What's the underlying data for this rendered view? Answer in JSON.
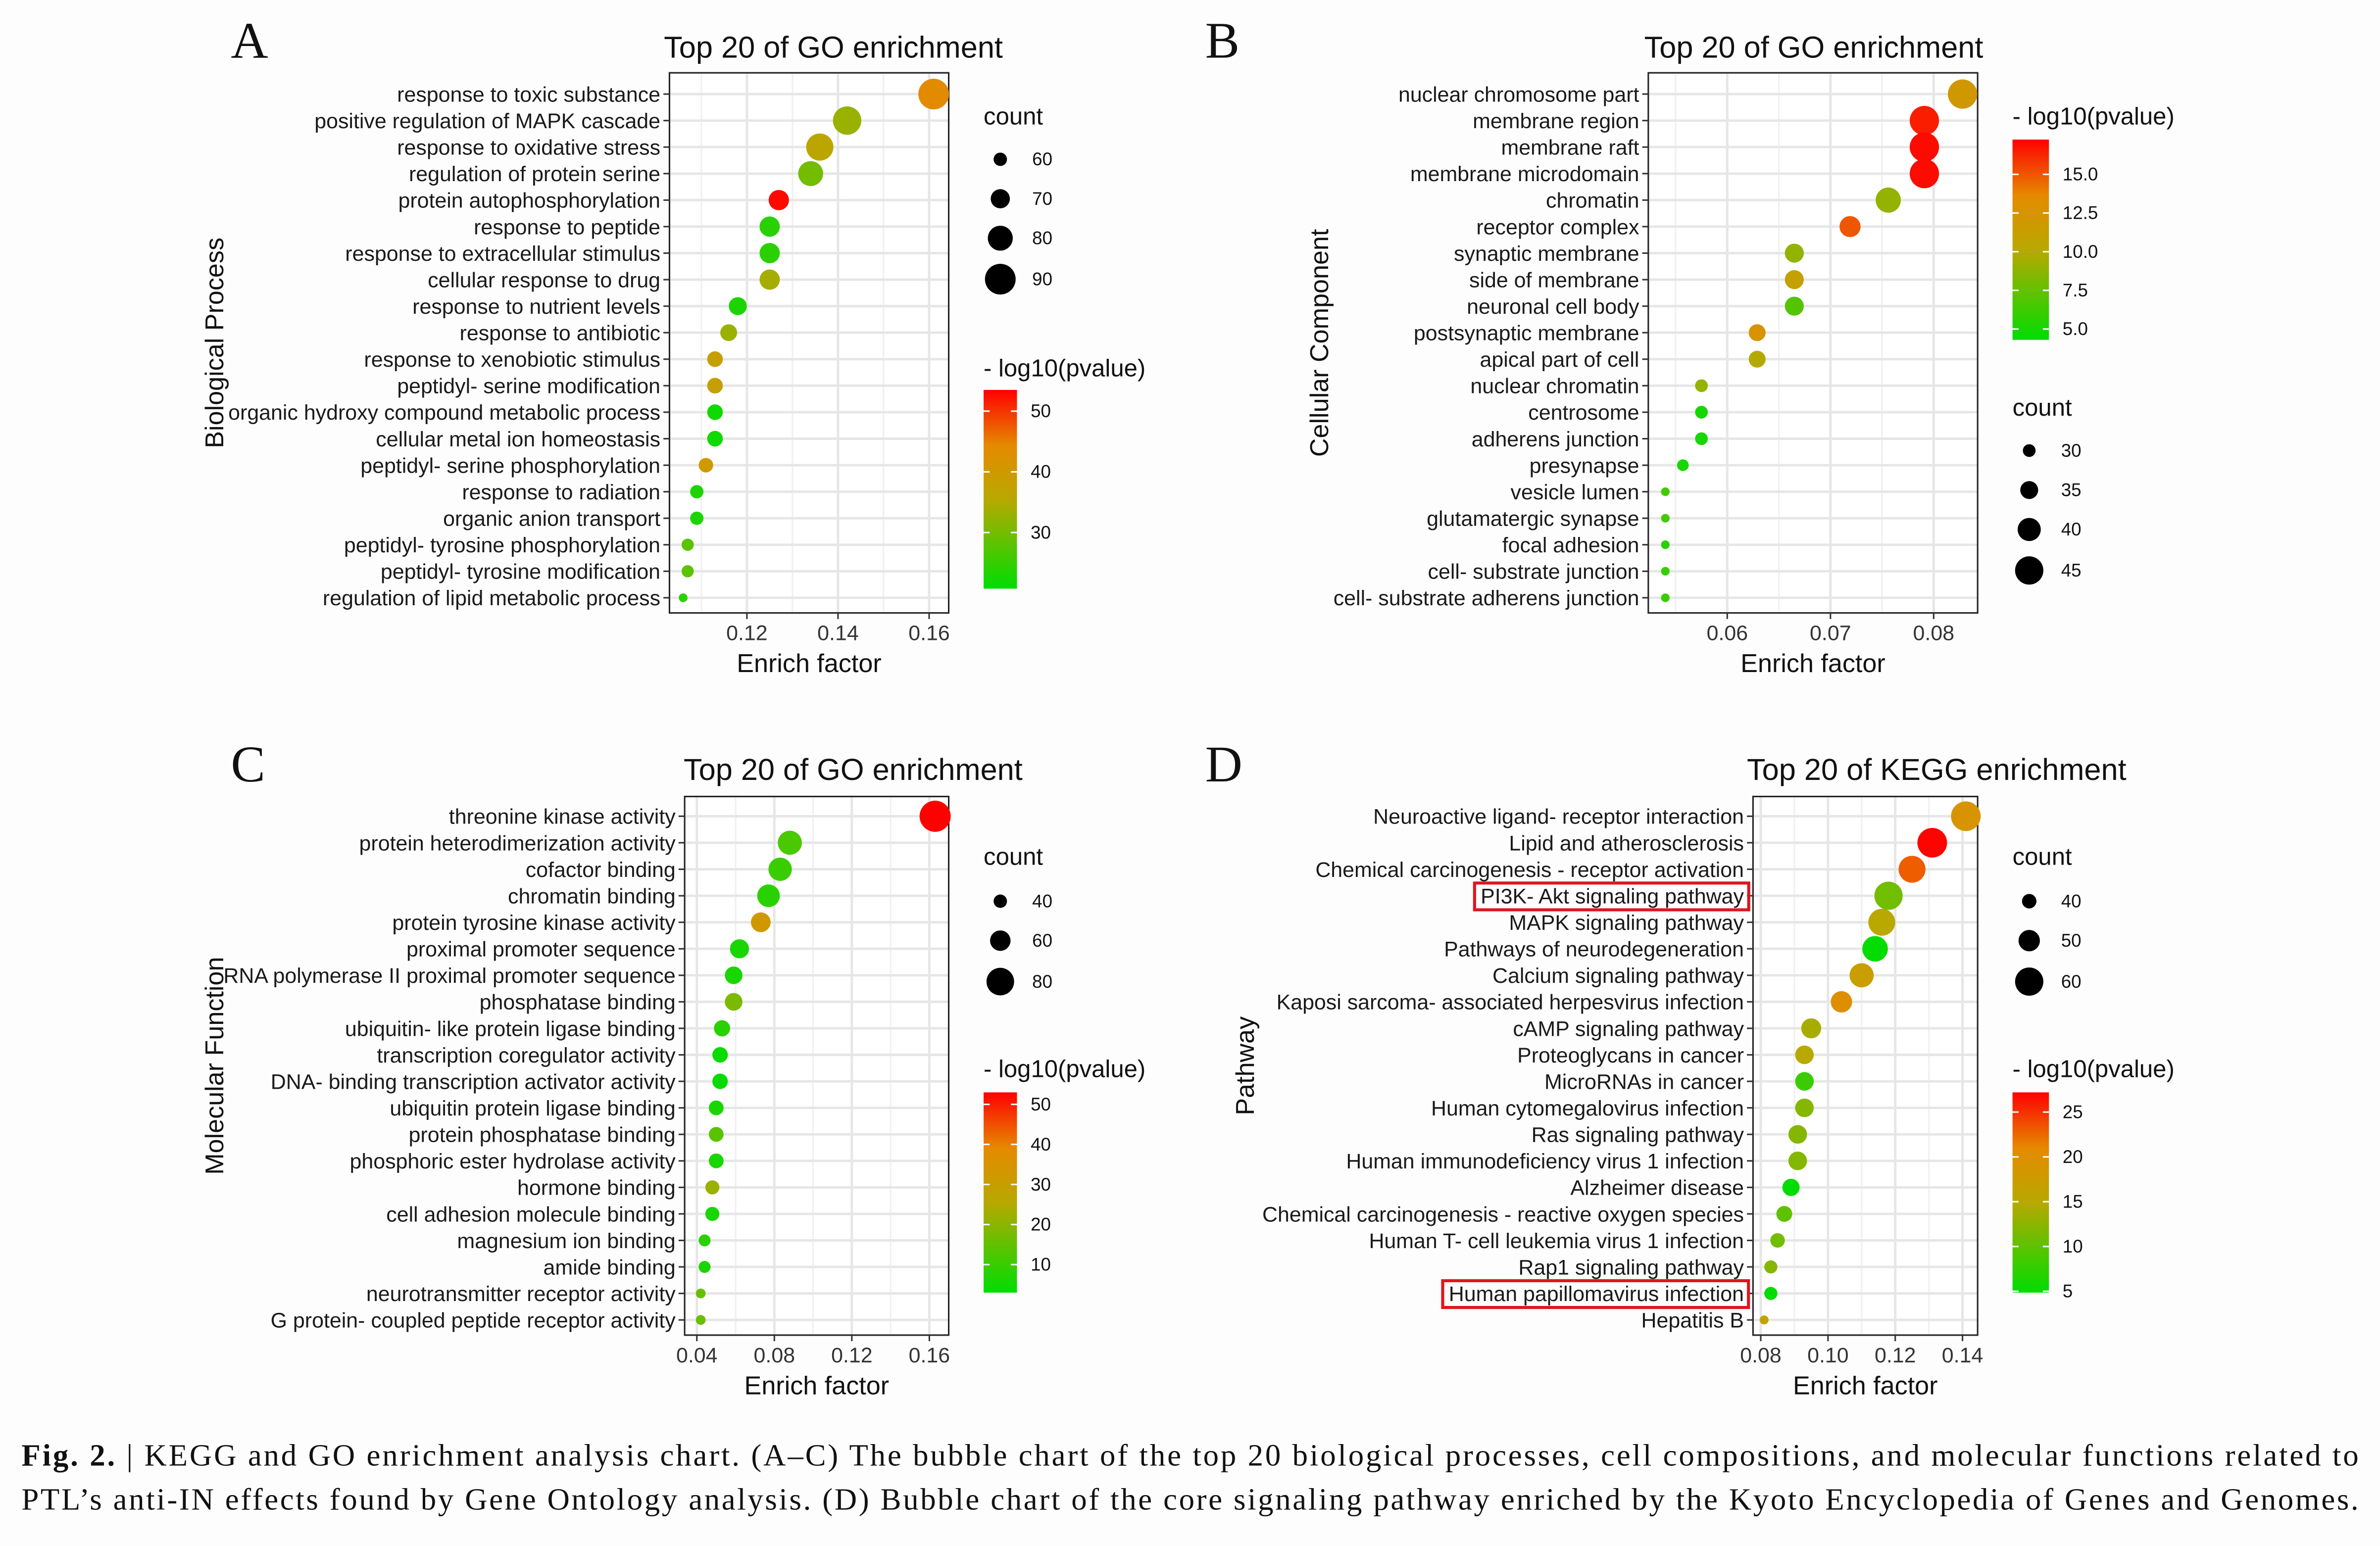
{
  "colors": {
    "low": "#00dd00",
    "mid": "#b8a800",
    "high_mid": "#e58a00",
    "high": "#ff0000",
    "highlight_box": "#e0141e"
  },
  "chart_data": [
    {
      "panel": "A",
      "type": "scatter",
      "title": "Top 20 of GO enrichment",
      "xlabel": "Enrich factor",
      "ylabel": "Biological Process",
      "xticks": [
        "0.12",
        "0.14",
        "0.16"
      ],
      "xlim": [
        0.103,
        0.1643
      ],
      "grid": true,
      "categories": [
        "response to toxic substance",
        "positive regulation of MAPK cascade",
        "response to oxidative stress",
        "regulation of protein serine",
        "protein autophosphorylation",
        "response to peptide",
        "response to extracellular stimulus",
        "cellular response to drug",
        "response to nutrient levels",
        "response to antibiotic",
        "response to xenobiotic stimulus",
        "peptidyl- serine modification",
        "organic hydroxy compound metabolic process",
        "cellular metal ion homeostasis",
        "peptidyl- serine phosphorylation",
        "response to radiation",
        "organic anion transport",
        "peptidyl- tyrosine phosphorylation",
        "peptidyl- tyrosine modification",
        "regulation of lipid metabolic process"
      ],
      "enrich_factor": [
        0.161,
        0.142,
        0.136,
        0.134,
        0.127,
        0.125,
        0.125,
        0.125,
        0.118,
        0.116,
        0.113,
        0.113,
        0.113,
        0.113,
        0.111,
        0.109,
        0.109,
        0.107,
        0.107,
        0.106
      ],
      "count": [
        90,
        86,
        84,
        80,
        72,
        72,
        72,
        72,
        68,
        66,
        64,
        64,
        64,
        64,
        62,
        60,
        60,
        58,
        58,
        52
      ],
      "neg_log10_pvalue": [
        44,
        33,
        36,
        30,
        53,
        24,
        24,
        34,
        23,
        33,
        38,
        38,
        22,
        22,
        40,
        23,
        23,
        28,
        28,
        24
      ],
      "size_legend": {
        "title": "count",
        "values": [
          "60",
          "70",
          "80",
          "90"
        ],
        "domain": [
          50,
          92
        ]
      },
      "color_legend": {
        "title": "- log10(pvalue)",
        "ticks": [
          "50",
          "40",
          "30"
        ],
        "range": [
          20.75,
          53.5
        ]
      }
    },
    {
      "panel": "B",
      "type": "scatter",
      "title": "Top 20 of GO enrichment",
      "xlabel": "Enrich factor",
      "ylabel": "Cellular Component",
      "xticks": [
        "0.06",
        "0.07",
        "0.08"
      ],
      "xlim": [
        0.05235,
        0.08426
      ],
      "grid": true,
      "categories": [
        "nuclear chromosome part",
        "membrane region",
        "membrane raft",
        "membrane microdomain",
        "chromatin",
        "receptor complex",
        "synaptic membrane",
        "side of membrane",
        "neuronal cell body",
        "postsynaptic membrane",
        "apical part of cell",
        "nuclear chromatin",
        "centrosome",
        "adherens junction",
        "presynapse",
        "vesicle lumen",
        "glutamatergic synapse",
        "focal adhesion",
        "cell- substrate junction",
        "cell- substrate adherens junction"
      ],
      "enrich_factor": [
        0.0828,
        0.0791,
        0.0791,
        0.0791,
        0.0756,
        0.0719,
        0.0665,
        0.0665,
        0.0665,
        0.0629,
        0.0629,
        0.0575,
        0.0575,
        0.0575,
        0.0557,
        0.054,
        0.054,
        0.054,
        0.054,
        0.054
      ],
      "count": [
        46,
        46,
        46,
        46,
        42,
        38,
        36,
        36,
        36,
        34,
        34,
        30,
        30,
        30,
        29,
        26,
        26,
        26,
        26,
        26
      ],
      "neg_log10_pvalue": [
        12,
        16.5,
        17,
        17,
        9,
        15,
        9,
        11,
        7,
        12.5,
        10,
        9,
        5,
        5,
        5,
        6.5,
        6.5,
        5.5,
        6,
        6
      ],
      "color_legend": {
        "title": "- log10(pvalue)",
        "ticks": [
          "15.0",
          "12.5",
          "10.0",
          "7.5",
          "5.0"
        ],
        "range": [
          4.3,
          17.25
        ]
      },
      "size_legend": {
        "title": "count",
        "values": [
          "30",
          "35",
          "40",
          "45"
        ],
        "domain": [
          25,
          47
        ]
      }
    },
    {
      "panel": "C",
      "type": "scatter",
      "title": "Top 20 of GO enrichment",
      "xlabel": "Enrich factor",
      "ylabel": "Molecular Function",
      "xticks": [
        "0.04",
        "0.08",
        "0.12",
        "0.16"
      ],
      "xlim": [
        0.0337,
        0.17
      ],
      "grid": true,
      "categories": [
        "threonine kinase activity",
        "protein heterodimerization activity",
        "cofactor binding",
        "chromatin binding",
        "protein tyrosine kinase activity",
        "proximal promoter sequence",
        "RNA polymerase II proximal promoter sequence",
        "phosphatase binding",
        "ubiquitin- like protein ligase binding",
        "transcription coregulator activity",
        "DNA- binding transcription activator activity",
        "ubiquitin protein ligase binding",
        "protein phosphatase binding",
        "phosphoric ester hydrolase activity",
        "hormone binding",
        "cell adhesion molecule binding",
        "magnesium ion binding",
        "amide binding",
        "neurotransmitter receptor activity",
        "G protein- coupled peptide receptor activity"
      ],
      "enrich_factor": [
        0.163,
        0.088,
        0.083,
        0.077,
        0.073,
        0.062,
        0.059,
        0.059,
        0.053,
        0.052,
        0.052,
        0.05,
        0.05,
        0.05,
        0.048,
        0.048,
        0.044,
        0.044,
        0.042,
        0.042
      ],
      "count": [
        90,
        70,
        68,
        66,
        58,
        56,
        52,
        52,
        48,
        46,
        46,
        44,
        44,
        44,
        42,
        42,
        36,
        36,
        30,
        30
      ],
      "neg_log10_pvalue": [
        53,
        12,
        10,
        8,
        33,
        6,
        6,
        18,
        8,
        4,
        4,
        6,
        14,
        6,
        22,
        6,
        8,
        6,
        16,
        16
      ],
      "size_legend": {
        "title": "count",
        "values": [
          "40",
          "60",
          "80"
        ],
        "domain": [
          28,
          92
        ]
      },
      "color_legend": {
        "title": "- log10(pvalue)",
        "ticks": [
          "50",
          "40",
          "30",
          "20",
          "10"
        ],
        "range": [
          3,
          53
        ]
      }
    },
    {
      "panel": "D",
      "type": "scatter",
      "title": "Top 20 of KEGG enrichment",
      "xlabel": "Enrich factor",
      "ylabel": "Pathway",
      "xticks": [
        "0.08",
        "0.10",
        "0.12",
        "0.14"
      ],
      "xlim": [
        0.0777,
        0.1445
      ],
      "grid": true,
      "categories": [
        "Neuroactive ligand- receptor interaction",
        "Lipid and atherosclerosis",
        "Chemical carcinogenesis -  receptor activation",
        "PI3K- Akt signaling pathway",
        "MAPK signaling pathway",
        "Pathways of neurodegeneration",
        "Calcium signaling pathway",
        "Kaposi sarcoma- associated herpesvirus infection",
        "cAMP signaling pathway",
        "Proteoglycans in cancer",
        "MicroRNAs in cancer",
        "Human cytomegalovirus infection",
        "Ras signaling pathway",
        "Human immunodeficiency virus 1 infection",
        "Alzheimer disease",
        "Chemical carcinogenesis -  reactive oxygen species",
        "Human T- cell leukemia virus 1 infection",
        "Rap1 signaling pathway",
        "Human papillomavirus infection",
        "Hepatitis B"
      ],
      "enrich_factor": [
        0.141,
        0.131,
        0.125,
        0.118,
        0.116,
        0.114,
        0.11,
        0.104,
        0.095,
        0.093,
        0.093,
        0.093,
        0.091,
        0.091,
        0.089,
        0.087,
        0.085,
        0.083,
        0.083,
        0.081
      ],
      "count": [
        62,
        62,
        58,
        60,
        58,
        56,
        54,
        50,
        48,
        46,
        46,
        46,
        46,
        46,
        44,
        42,
        40,
        38,
        38,
        32
      ],
      "neg_log10_pvalue": [
        19,
        27,
        23,
        11,
        15,
        5,
        17,
        20,
        14,
        15,
        8,
        12,
        12,
        12,
        5,
        10,
        11,
        12,
        5,
        16
      ],
      "highlighted": [
        "PI3K- Akt signaling pathway",
        "Human papillomavirus infection"
      ],
      "size_legend": {
        "title": "count",
        "values": [
          "40",
          "50",
          "60"
        ],
        "domain": [
          30,
          63
        ]
      },
      "color_legend": {
        "title": "- log10(pvalue)",
        "ticks": [
          "25",
          "20",
          "15",
          "10",
          "5"
        ],
        "range": [
          4.85,
          27.2
        ]
      }
    }
  ],
  "caption": {
    "label": "Fig. 2.",
    "line1": " | KEGG and GO enrichment analysis chart. (A–C) The bubble chart of the top 20 biological processes, cell compositions, and molecular functions related to",
    "line2": "PTL’s anti-IN effects found by Gene Ontology analysis. (D) Bubble chart of the core signaling pathway enriched by the Kyoto Encyclopedia of Genes and Genomes."
  }
}
